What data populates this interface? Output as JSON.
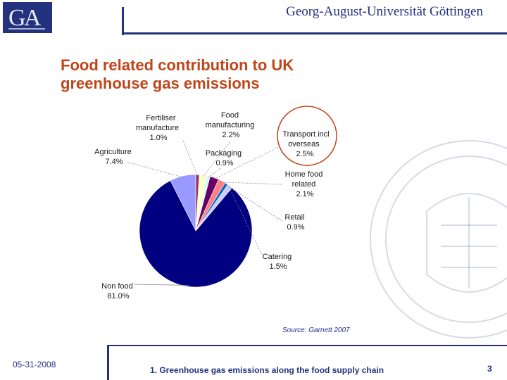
{
  "header": {
    "university_name": "Georg-August-Universität Göttingen",
    "brand_color": "#23327f"
  },
  "title_lines": [
    "Food related contribution to UK",
    "greenhouse gas emissions"
  ],
  "title_color": "#c0451a",
  "chart_data": {
    "type": "pie",
    "title": "",
    "slices": [
      {
        "label": "Agriculture",
        "value": 7.4,
        "display": "7.4%",
        "color": "#9999ff"
      },
      {
        "label": "Fertiliser manufacture",
        "value": 1.0,
        "display": "1.0%",
        "color": "#993366"
      },
      {
        "label": "Food manufacturing",
        "value": 2.2,
        "display": "2.2%",
        "color": "#ffffcc"
      },
      {
        "label": "Packaging",
        "value": 0.9,
        "display": "0.9%",
        "color": "#ccffff"
      },
      {
        "label": "Transport incl overseas",
        "value": 2.5,
        "display": "2.5%",
        "color": "#660066"
      },
      {
        "label": "Home food related",
        "value": 2.1,
        "display": "2.1%",
        "color": "#ff8080"
      },
      {
        "label": "Retail",
        "value": 0.9,
        "display": "0.9%",
        "color": "#0066cc"
      },
      {
        "label": "Catering",
        "value": 1.5,
        "display": "1.5%",
        "color": "#ccccff"
      },
      {
        "label": "Non food",
        "value": 81.0,
        "display": "81.0%",
        "color": "#000080"
      }
    ],
    "labels_text": {
      "fertiliser": [
        "Fertiliser",
        "manufacture",
        "1.0%"
      ],
      "food_manufacturing": [
        "Food",
        "manufacturing",
        "2.2%"
      ],
      "transport": [
        "Transport incl",
        "overseas",
        "2.5%"
      ],
      "agriculture": [
        "Agriculture",
        "7.4%"
      ],
      "packaging": [
        "Packaging",
        "0.9%"
      ],
      "home_food": [
        "Home food",
        "related",
        "2.1%"
      ],
      "retail": [
        "Retail",
        "0.9%"
      ],
      "catering": [
        "Catering",
        "1.5%"
      ],
      "non_food": [
        "Non food",
        "81.0%"
      ]
    },
    "highlight": "Transport incl overseas",
    "highlight_color": "#c0451a"
  },
  "source_note": "Source: Garnett 2007",
  "footer": {
    "date": "05-31-2008",
    "topic": "1. Greenhouse gas emissions along the food supply chain",
    "page_number": "3"
  }
}
